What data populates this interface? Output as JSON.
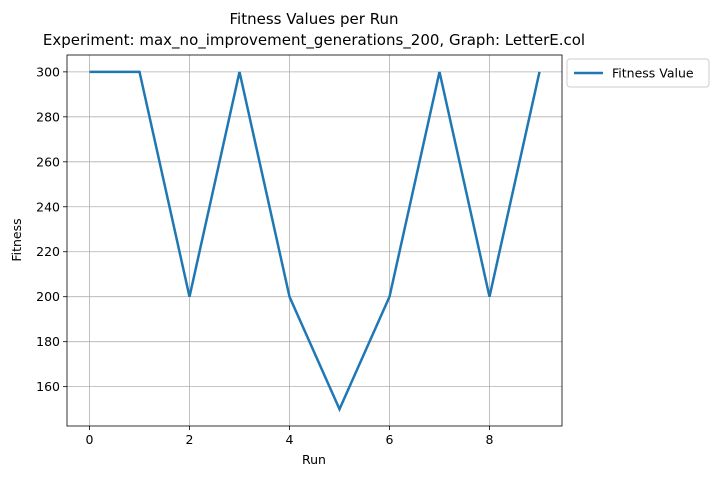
{
  "chart_data": {
    "type": "line",
    "title": "Fitness Values per Run",
    "subtitle": "Experiment: max_no_improvement_generations_200, Graph: LetterE.col",
    "xlabel": "Run",
    "ylabel": "Fitness",
    "x": [
      0,
      1,
      2,
      3,
      4,
      5,
      6,
      7,
      8,
      9
    ],
    "series": [
      {
        "name": "Fitness Value",
        "color": "#1f77b4",
        "values": [
          300,
          300,
          200,
          300,
          200,
          150,
          200,
          300,
          200,
          300
        ]
      }
    ],
    "xlim": [
      -0.45,
      9.45
    ],
    "ylim": [
      142.5,
      307.5
    ],
    "xticks": [
      0,
      2,
      4,
      6,
      8
    ],
    "yticks": [
      160,
      180,
      200,
      220,
      240,
      260,
      280,
      300
    ],
    "grid": true,
    "legend_position": "outside-top-right"
  }
}
